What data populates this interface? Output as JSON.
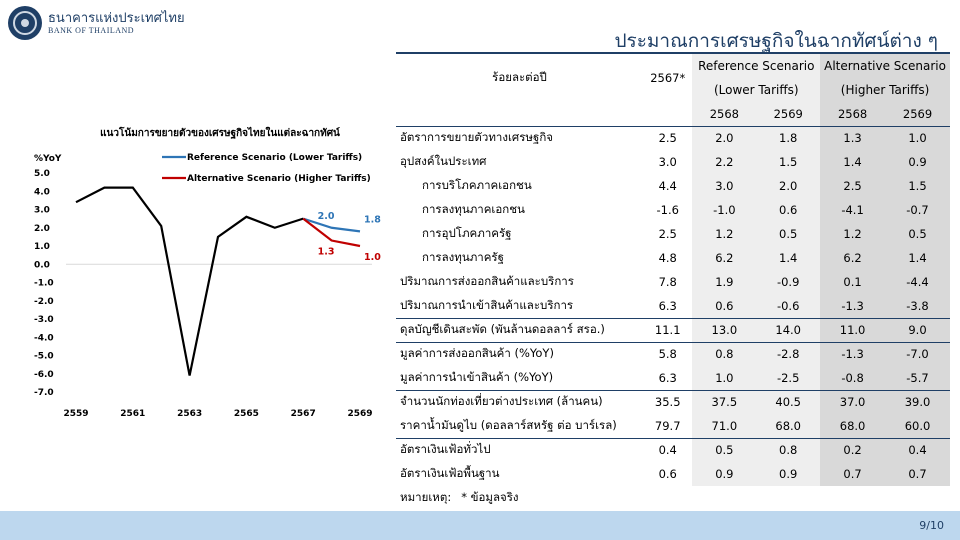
{
  "logo": {
    "thai": "ธนาคารแห่งประเทศไทย",
    "english": "BANK OF THAILAND"
  },
  "title": "ประมาณการเศรษฐกิจในฉากทัศน์ต่าง ๆ",
  "chart_data": {
    "type": "line",
    "title": "แนวโน้มการขยายตัวของเศรษฐกิจไทยในแต่ละฉากทัศน์",
    "ylabel": "%YoY",
    "ylim": [
      -7.0,
      5.0
    ],
    "yticks": [
      "5.0",
      "4.0",
      "3.0",
      "2.0",
      "1.0",
      "0.0",
      "-1.0",
      "-2.0",
      "-3.0",
      "-4.0",
      "-5.0",
      "-6.0",
      "-7.0"
    ],
    "xticks": [
      "2559",
      "2561",
      "2563",
      "2565",
      "2567",
      "2569"
    ],
    "x": [
      2559,
      2560,
      2561,
      2562,
      2563,
      2564,
      2565,
      2566,
      2567
    ],
    "history": [
      3.4,
      4.2,
      4.2,
      2.1,
      -6.1,
      1.5,
      2.6,
      2.0,
      2.5
    ],
    "legend": "top-right",
    "series": [
      {
        "name": "Reference Scenario (Lower Tariffs)",
        "color": "#2e75b6",
        "x": [
          2567,
          2568,
          2569
        ],
        "values": [
          2.5,
          2.0,
          1.8
        ],
        "labels": [
          "2.0",
          "1.8"
        ]
      },
      {
        "name": "Alternative Scenario (Higher Tariffs)",
        "color": "#c00000",
        "x": [
          2567,
          2568,
          2569
        ],
        "values": [
          2.5,
          1.3,
          1.0
        ],
        "labels": [
          "1.3",
          "1.0"
        ]
      }
    ]
  },
  "table": {
    "row_header": "ร้อยละต่อปี",
    "col_2567": "2567*",
    "ref_line1": "Reference Scenario",
    "ref_line2": "(Lower Tariffs)",
    "alt_line1": "Alternative Scenario",
    "alt_line2": "(Higher Tariffs)",
    "ref_y1": "2568",
    "ref_y2": "2569",
    "alt_y1": "2568",
    "alt_y2": "2569",
    "rows": [
      {
        "label": "อัตราการขยายตัวทางเศรษฐกิจ",
        "v": [
          "2.5",
          "2.0",
          "1.8",
          "1.3",
          "1.0"
        ]
      },
      {
        "label": "อุปสงค์ในประเทศ",
        "v": [
          "3.0",
          "2.2",
          "1.5",
          "1.4",
          "0.9"
        ]
      },
      {
        "label": "การบริโภคภาคเอกชน",
        "v": [
          "4.4",
          "3.0",
          "2.0",
          "2.5",
          "1.5"
        ]
      },
      {
        "label": "การลงทุนภาคเอกชน",
        "v": [
          "-1.6",
          "-1.0",
          "0.6",
          "-4.1",
          "-0.7"
        ]
      },
      {
        "label": "การอุปโภคภาครัฐ",
        "v": [
          "2.5",
          "1.2",
          "0.5",
          "1.2",
          "0.5"
        ]
      },
      {
        "label": "การลงทุนภาครัฐ",
        "v": [
          "4.8",
          "6.2",
          "1.4",
          "6.2",
          "1.4"
        ]
      },
      {
        "label": "ปริมาณการส่งออกสินค้าและบริการ",
        "v": [
          "7.8",
          "1.9",
          "-0.9",
          "0.1",
          "-4.4"
        ]
      },
      {
        "label": "ปริมาณการนำเข้าสินค้าและบริการ",
        "v": [
          "6.3",
          "0.6",
          "-0.6",
          "-1.3",
          "-3.8"
        ]
      },
      {
        "label": "ดุลบัญชีเดินสะพัด (พันล้านดอลลาร์ สรอ.)",
        "v": [
          "11.1",
          "13.0",
          "14.0",
          "11.0",
          "9.0"
        ]
      },
      {
        "label": "มูลค่าการส่งออกสินค้า (%YoY)",
        "v": [
          "5.8",
          "0.8",
          "-2.8",
          "-1.3",
          "-7.0"
        ]
      },
      {
        "label": "มูลค่าการนำเข้าสินค้า (%YoY)",
        "v": [
          "6.3",
          "1.0",
          "-2.5",
          "-0.8",
          "-5.7"
        ]
      },
      {
        "label": "จำนวนนักท่องเที่ยวต่างประเทศ (ล้านคน)",
        "v": [
          "35.5",
          "37.5",
          "40.5",
          "37.0",
          "39.0"
        ]
      },
      {
        "label": "ราคาน้ำมันดูไบ (ดอลลาร์สหรัฐ ต่อ บาร์เรล)",
        "v": [
          "79.7",
          "71.0",
          "68.0",
          "68.0",
          "60.0"
        ]
      },
      {
        "label": "อัตราเงินเฟ้อทั่วไป",
        "v": [
          "0.4",
          "0.5",
          "0.8",
          "0.2",
          "0.4"
        ]
      },
      {
        "label": "อัตราเงินเฟ้อพื้นฐาน",
        "v": [
          "0.6",
          "0.9",
          "0.9",
          "0.7",
          "0.7"
        ]
      }
    ],
    "note_label": "หมายเหตุ:",
    "note_text": "* ข้อมูลจริง"
  },
  "footer": {
    "page": "9/10",
    "color": "#bdd7ee"
  }
}
